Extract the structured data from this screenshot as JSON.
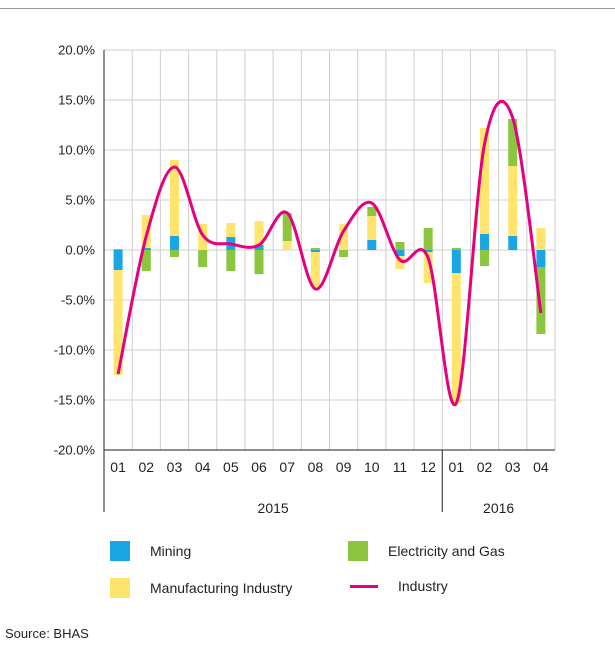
{
  "chart_data": {
    "type": "bar",
    "stacked": true,
    "title": "",
    "xlabel": "",
    "ylabel": "",
    "ylim": [
      -20,
      20
    ],
    "y_ticks": [
      {
        "value": 20,
        "label": "20.0%"
      },
      {
        "value": 15,
        "label": "15.0%"
      },
      {
        "value": 10,
        "label": "10.0%"
      },
      {
        "value": 5,
        "label": "5.0%"
      },
      {
        "value": 0,
        "label": "0.0%"
      },
      {
        "value": -5,
        "label": "-5.0%"
      },
      {
        "value": -10,
        "label": "-10.0%"
      },
      {
        "value": -15,
        "label": "-15.0%"
      },
      {
        "value": -20,
        "label": "-20.0%"
      }
    ],
    "grid": true,
    "categories": [
      "01",
      "02",
      "03",
      "04",
      "05",
      "06",
      "07",
      "08",
      "09",
      "10",
      "11",
      "12",
      "01",
      "02",
      "03",
      "04"
    ],
    "year_groups": [
      {
        "label": "2015",
        "count": 12
      },
      {
        "label": "2016",
        "count": 4
      }
    ],
    "series": [
      {
        "name": "Mining",
        "color": "#1aa6e4",
        "kind": "bar",
        "values": [
          -2.0,
          0.2,
          1.4,
          0.0,
          1.3,
          0.5,
          0.0,
          -0.2,
          0.0,
          1.0,
          -0.6,
          -0.2,
          -2.3,
          1.6,
          1.4,
          -1.7
        ]
      },
      {
        "name": "Manufacturing Industry",
        "color": "#ffe56e",
        "kind": "bar",
        "values": [
          -10.5,
          3.3,
          7.6,
          2.6,
          1.4,
          2.4,
          0.9,
          -3.5,
          2.6,
          2.4,
          -1.3,
          -3.1,
          -13.0,
          10.6,
          7.0,
          2.2
        ]
      },
      {
        "name": "Electricity and Gas",
        "color": "#8cc63f",
        "kind": "bar",
        "values": [
          0.1,
          -2.1,
          -0.7,
          -1.7,
          -2.1,
          -2.4,
          2.8,
          0.2,
          -0.7,
          0.9,
          0.8,
          2.2,
          0.2,
          -1.6,
          4.7,
          -6.7
        ]
      },
      {
        "name": "Industry",
        "color": "#e6007e",
        "kind": "line",
        "values": [
          -12.4,
          1.4,
          8.3,
          1.5,
          0.6,
          0.5,
          3.7,
          -3.9,
          1.9,
          4.7,
          -1.0,
          -0.8,
          -15.3,
          10.6,
          13.2,
          -6.3
        ]
      }
    ],
    "legend": {
      "placement": "bottom"
    }
  },
  "source": "Source: BHAS"
}
